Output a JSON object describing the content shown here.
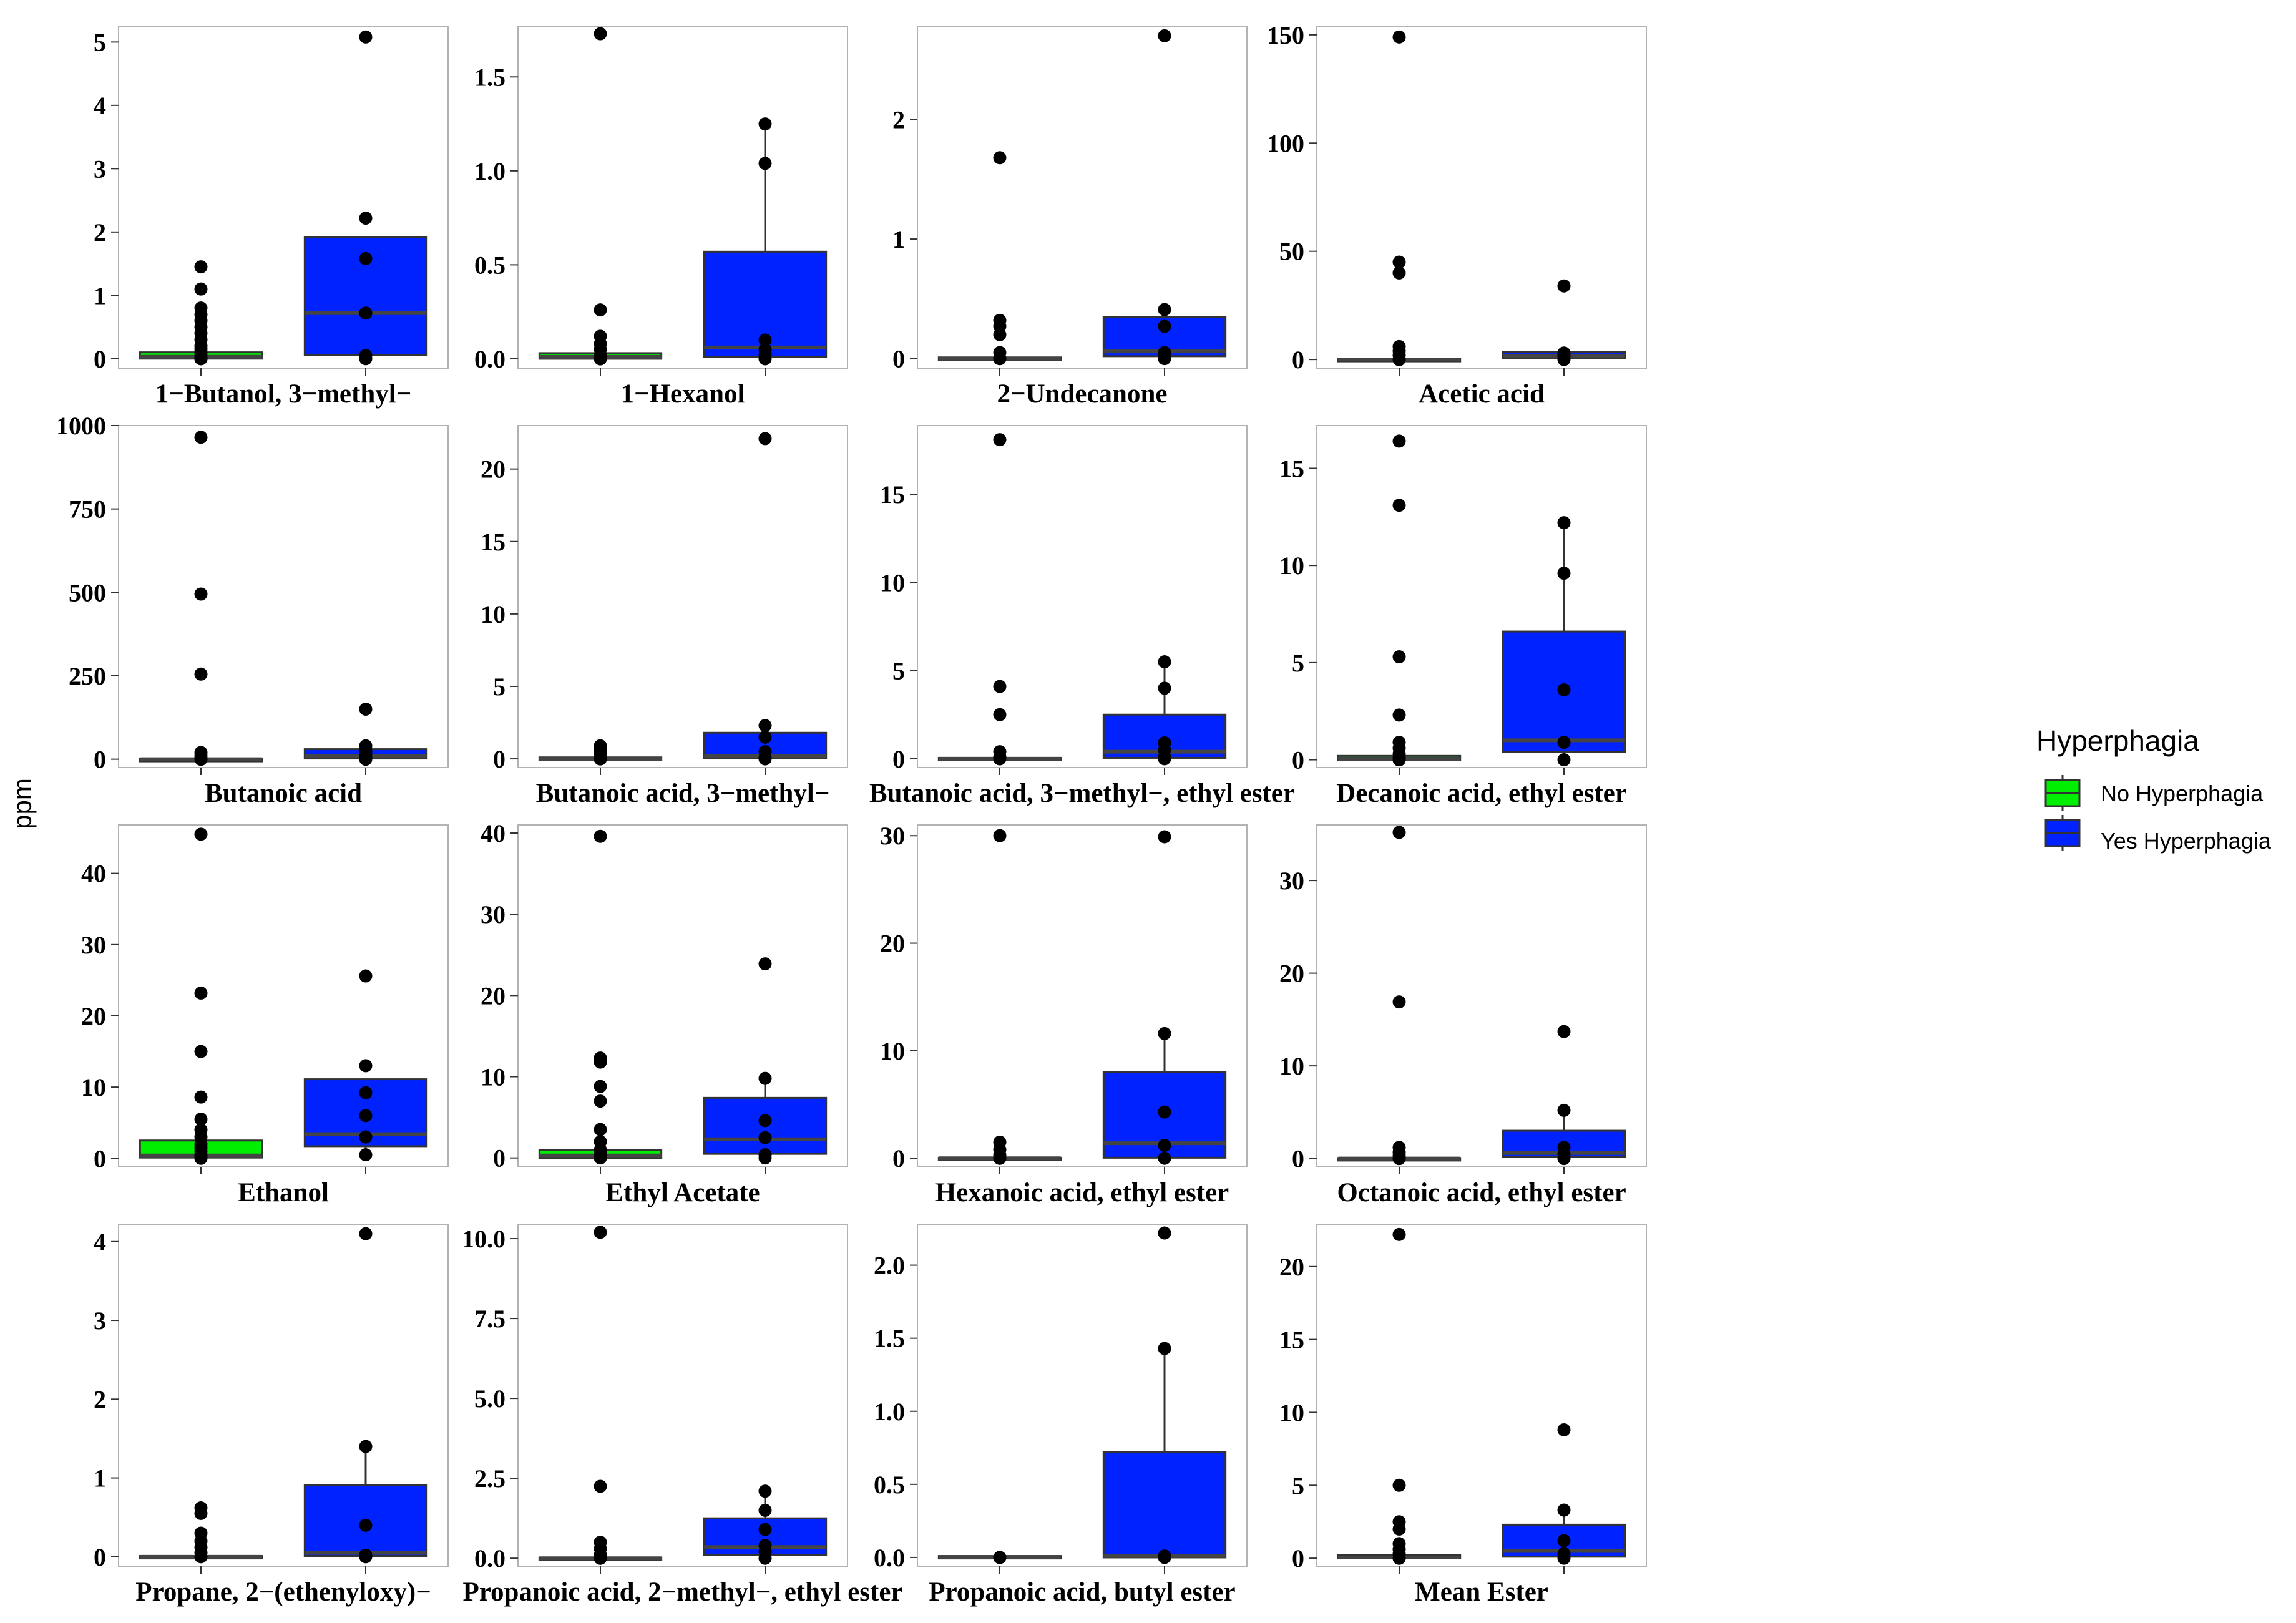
{
  "chart_data": {
    "type": "boxplot",
    "ylabel": "ppm",
    "legend": {
      "title": "Hyperphagia",
      "position": "right",
      "entries": [
        {
          "label": "No Hyperphagia",
          "color": "#00ee00"
        },
        {
          "label": "Yes Hyperphagia",
          "color": "#0022ff"
        }
      ]
    },
    "grid": false,
    "panels": [
      {
        "title": "1−Butanol, 3−methyl−",
        "ylim": [
          -0.15,
          5.25
        ],
        "yticks": [
          0,
          1,
          2,
          3,
          4,
          5
        ],
        "tick_labels": [
          "0",
          "1",
          "2",
          "3",
          "4",
          "5"
        ],
        "groups": [
          {
            "q1": 0,
            "median": 0.03,
            "q3": 0.1,
            "whisker_low": 0,
            "whisker_high": 0.1,
            "points": [
              0,
              0,
              0,
              0.02,
              0.05,
              0.1,
              0.15,
              0.2,
              0.3,
              0.4,
              0.5,
              0.6,
              0.7,
              0.8,
              1.1,
              1.45
            ]
          },
          {
            "q1": 0.06,
            "median": 0.72,
            "q3": 1.92,
            "whisker_low": 0,
            "whisker_high": 1.92,
            "points": [
              0,
              0.05,
              0.72,
              1.58,
              2.22,
              5.08
            ]
          }
        ]
      },
      {
        "title": "1−Hexanol",
        "ylim": [
          -0.05,
          1.77
        ],
        "yticks": [
          0,
          0.5,
          1,
          1.5
        ],
        "tick_labels": [
          "0.0",
          "0.5",
          "1.0",
          "1.5"
        ],
        "groups": [
          {
            "q1": 0,
            "median": 0.01,
            "q3": 0.03,
            "whisker_low": 0,
            "whisker_high": 0.03,
            "points": [
              0,
              0,
              0.01,
              0.02,
              0.05,
              0.08,
              0.12,
              0.26,
              1.73
            ]
          },
          {
            "q1": 0.01,
            "median": 0.06,
            "q3": 0.57,
            "whisker_low": 0,
            "whisker_high": 1.25,
            "points": [
              0,
              0.02,
              0.05,
              0.1,
              1.04,
              1.25
            ]
          }
        ]
      },
      {
        "title": "2−Undecanone",
        "ylim": [
          -0.08,
          2.78
        ],
        "yticks": [
          0,
          1,
          2
        ],
        "tick_labels": [
          "0",
          "1",
          "2"
        ],
        "groups": [
          {
            "q1": 0,
            "median": 0,
            "q3": 0.01,
            "whisker_low": 0,
            "whisker_high": 0.01,
            "points": [
              0,
              0,
              0,
              0.05,
              0.2,
              0.27,
              0.32,
              1.68
            ]
          },
          {
            "q1": 0.02,
            "median": 0.06,
            "q3": 0.35,
            "whisker_low": 0,
            "whisker_high": 0.35,
            "points": [
              0,
              0.02,
              0.05,
              0.27,
              0.41,
              2.7
            ]
          }
        ]
      },
      {
        "title": "Acetic acid",
        "ylim": [
          -4,
          154
        ],
        "yticks": [
          0,
          50,
          100,
          150
        ],
        "tick_labels": [
          "0",
          "50",
          "100",
          "150"
        ],
        "groups": [
          {
            "q1": 0,
            "median": 0,
            "q3": 0.3,
            "whisker_low": 0,
            "whisker_high": 0.3,
            "points": [
              0,
              0,
              0,
              2,
              4,
              6,
              40,
              45,
              149
            ]
          },
          {
            "q1": 0.5,
            "median": 1.5,
            "q3": 3.5,
            "whisker_low": 0,
            "whisker_high": 3.5,
            "points": [
              0,
              1,
              2,
              3,
              34
            ]
          }
        ]
      },
      {
        "title": "Butanoic acid",
        "ylim": [
          -25,
          1000
        ],
        "yticks": [
          0,
          250,
          500,
          750,
          1000
        ],
        "tick_labels": [
          "0",
          "250",
          "500",
          "750",
          "1000"
        ],
        "groups": [
          {
            "q1": 0,
            "median": 0,
            "q3": 1,
            "whisker_low": 0,
            "whisker_high": 1,
            "points": [
              0,
              0,
              2,
              10,
              20,
              255,
              495,
              965
            ]
          },
          {
            "q1": 2,
            "median": 10,
            "q3": 30,
            "whisker_low": 0,
            "whisker_high": 30,
            "points": [
              0,
              5,
              15,
              25,
              40,
              150
            ]
          }
        ]
      },
      {
        "title": "Butanoic acid, 3−methyl−",
        "ylim": [
          -0.6,
          23
        ],
        "yticks": [
          0,
          5,
          10,
          15,
          20
        ],
        "tick_labels": [
          "0",
          "5",
          "10",
          "15",
          "20"
        ],
        "groups": [
          {
            "q1": 0,
            "median": 0,
            "q3": 0.1,
            "whisker_low": 0,
            "whisker_high": 0.1,
            "points": [
              0,
              0,
              0.3,
              0.6,
              0.9
            ]
          },
          {
            "q1": 0.05,
            "median": 0.2,
            "q3": 1.8,
            "whisker_low": 0,
            "whisker_high": 1.8,
            "points": [
              0,
              0.1,
              0.5,
              1.5,
              2.3,
              22.1
            ]
          }
        ]
      },
      {
        "title": "Butanoic acid, 3−methyl−, ethyl ester",
        "ylim": [
          -0.5,
          18.9
        ],
        "yticks": [
          0,
          5,
          10,
          15
        ],
        "tick_labels": [
          "0",
          "5",
          "10",
          "15"
        ],
        "groups": [
          {
            "q1": 0,
            "median": 0,
            "q3": 0.05,
            "whisker_low": 0,
            "whisker_high": 0.05,
            "points": [
              0,
              0,
              0.1,
              0.4,
              2.5,
              4.1,
              18.1
            ]
          },
          {
            "q1": 0.05,
            "median": 0.4,
            "q3": 2.5,
            "whisker_low": 0,
            "whisker_high": 5.5,
            "points": [
              0,
              0.1,
              0.5,
              0.9,
              4.0,
              5.5
            ]
          }
        ]
      },
      {
        "title": "Decanoic acid, ethyl ester",
        "ylim": [
          -0.4,
          17.2
        ],
        "yticks": [
          0,
          5,
          10,
          15
        ],
        "tick_labels": [
          "0",
          "5",
          "10",
          "15"
        ],
        "groups": [
          {
            "q1": 0,
            "median": 0.05,
            "q3": 0.2,
            "whisker_low": 0,
            "whisker_high": 0.2,
            "points": [
              0,
              0,
              0.1,
              0.3,
              0.6,
              0.9,
              2.3,
              5.3,
              13.1,
              16.4
            ]
          },
          {
            "q1": 0.4,
            "median": 1.0,
            "q3": 6.6,
            "whisker_low": 0,
            "whisker_high": 12.2,
            "points": [
              0,
              0.9,
              3.6,
              9.6,
              12.2
            ]
          }
        ]
      },
      {
        "title": "Ethanol",
        "ylim": [
          -1.2,
          46.8
        ],
        "yticks": [
          0,
          10,
          20,
          30,
          40
        ],
        "tick_labels": [
          "0",
          "10",
          "20",
          "30",
          "40"
        ],
        "groups": [
          {
            "q1": 0.1,
            "median": 0.4,
            "q3": 2.5,
            "whisker_low": 0,
            "whisker_high": 2.5,
            "points": [
              0,
              0.2,
              0.5,
              1,
              1.5,
              2,
              3,
              4,
              5.5,
              8.6,
              15,
              23.2,
              45.5
            ]
          },
          {
            "q1": 1.7,
            "median": 3.4,
            "q3": 11.1,
            "whisker_low": 0.5,
            "whisker_high": 11.1,
            "points": [
              0.5,
              3,
              6,
              9.2,
              13,
              25.6
            ]
          }
        ]
      },
      {
        "title": "Ethyl Acetate",
        "ylim": [
          -1.1,
          41
        ],
        "yticks": [
          0,
          10,
          20,
          30,
          40
        ],
        "tick_labels": [
          "0",
          "10",
          "20",
          "30",
          "40"
        ],
        "groups": [
          {
            "q1": 0,
            "median": 0.3,
            "q3": 1.0,
            "whisker_low": 0,
            "whisker_high": 1.0,
            "points": [
              0,
              0.2,
              0.5,
              1,
              2,
              3.5,
              7,
              8.8,
              11.8,
              12.3,
              39.6
            ]
          },
          {
            "q1": 0.5,
            "median": 2.3,
            "q3": 7.4,
            "whisker_low": 0,
            "whisker_high": 9.8,
            "points": [
              0,
              0.4,
              2.5,
              4.6,
              9.8,
              23.9
            ]
          }
        ]
      },
      {
        "title": "Hexanoic acid, ethyl ester",
        "ylim": [
          -0.8,
          31
        ],
        "yticks": [
          0,
          10,
          20,
          30
        ],
        "tick_labels": [
          "0",
          "10",
          "20",
          "30"
        ],
        "groups": [
          {
            "q1": 0,
            "median": 0,
            "q3": 0.05,
            "whisker_low": 0,
            "whisker_high": 0.05,
            "points": [
              0,
              0,
              0.3,
              0.8,
              1.5,
              30
            ]
          },
          {
            "q1": 0.05,
            "median": 1.4,
            "q3": 8.0,
            "whisker_low": 0,
            "whisker_high": 11.6,
            "points": [
              0,
              1.2,
              4.3,
              11.6,
              29.9
            ]
          }
        ]
      },
      {
        "title": "Octanoic acid, ethyl ester",
        "ylim": [
          -0.9,
          36
        ],
        "yticks": [
          0,
          10,
          20,
          30
        ],
        "tick_labels": [
          "0",
          "10",
          "20",
          "30"
        ],
        "groups": [
          {
            "q1": 0,
            "median": 0,
            "q3": 0.05,
            "whisker_low": 0,
            "whisker_high": 0.05,
            "points": [
              0,
              0,
              0.3,
              0.7,
              1.2,
              16.9,
              35.2
            ]
          },
          {
            "q1": 0.2,
            "median": 0.6,
            "q3": 3.0,
            "whisker_low": 0,
            "whisker_high": 5.2,
            "points": [
              0,
              0.5,
              1.2,
              5.2,
              13.7
            ]
          }
        ]
      },
      {
        "title": "Propane, 2−(ethenyloxy)−",
        "ylim": [
          -0.12,
          4.22
        ],
        "yticks": [
          0,
          1,
          2,
          3,
          4
        ],
        "tick_labels": [
          "0",
          "1",
          "2",
          "3",
          "4"
        ],
        "groups": [
          {
            "q1": 0,
            "median": 0,
            "q3": 0.01,
            "whisker_low": 0,
            "whisker_high": 0.01,
            "points": [
              0,
              0.05,
              0.12,
              0.2,
              0.3,
              0.55,
              0.62
            ]
          },
          {
            "q1": 0.01,
            "median": 0.05,
            "q3": 0.91,
            "whisker_low": 0,
            "whisker_high": 1.4,
            "points": [
              0,
              0.02,
              0.4,
              1.4,
              4.1
            ]
          }
        ]
      },
      {
        "title": "Propanoic acid, 2−methyl−, ethyl ester",
        "ylim": [
          -0.25,
          10.45
        ],
        "yticks": [
          0,
          2.5,
          5,
          7.5,
          10
        ],
        "tick_labels": [
          "0.0",
          "2.5",
          "5.0",
          "7.5",
          "10.0"
        ],
        "groups": [
          {
            "q1": 0,
            "median": 0,
            "q3": 0.02,
            "whisker_low": 0,
            "whisker_high": 0.02,
            "points": [
              0,
              0,
              0.1,
              0.3,
              0.5,
              2.25,
              10.2
            ]
          },
          {
            "q1": 0.1,
            "median": 0.35,
            "q3": 1.25,
            "whisker_low": 0,
            "whisker_high": 2.1,
            "points": [
              0,
              0.2,
              0.4,
              0.9,
              1.5,
              2.1
            ]
          }
        ]
      },
      {
        "title": "Propanoic acid, butyl ester",
        "ylim": [
          -0.06,
          2.28
        ],
        "yticks": [
          0,
          0.5,
          1,
          1.5,
          2
        ],
        "tick_labels": [
          "0.0",
          "0.5",
          "1.0",
          "1.5",
          "2.0"
        ],
        "groups": [
          {
            "q1": 0,
            "median": 0,
            "q3": 0.01,
            "whisker_low": 0,
            "whisker_high": 0.01,
            "points": [
              0,
              0
            ]
          },
          {
            "q1": 0,
            "median": 0.01,
            "q3": 0.72,
            "whisker_low": 0,
            "whisker_high": 1.43,
            "points": [
              0,
              0.01,
              1.43,
              2.22
            ]
          }
        ]
      },
      {
        "title": "Mean Ester",
        "ylim": [
          -0.55,
          22.9
        ],
        "yticks": [
          0,
          5,
          10,
          15,
          20
        ],
        "tick_labels": [
          "0",
          "5",
          "10",
          "15",
          "20"
        ],
        "groups": [
          {
            "q1": 0,
            "median": 0.05,
            "q3": 0.2,
            "whisker_low": 0,
            "whisker_high": 0.2,
            "points": [
              0,
              0,
              0.3,
              0.6,
              1,
              2,
              2.5,
              5,
              22.2
            ]
          },
          {
            "q1": 0.1,
            "median": 0.5,
            "q3": 2.3,
            "whisker_low": 0,
            "whisker_high": 3.3,
            "points": [
              0,
              0.3,
              1.2,
              3.3,
              8.8
            ]
          }
        ]
      }
    ]
  }
}
